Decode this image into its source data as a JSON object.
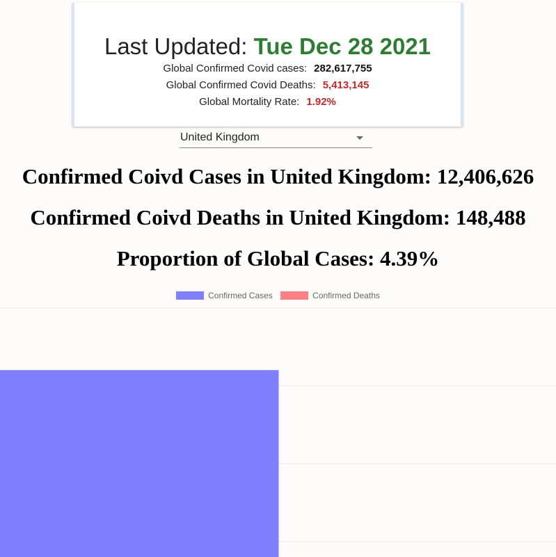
{
  "summary": {
    "last_updated_label": "Last Updated:",
    "last_updated_date": "Tue Dec 28 2021",
    "global_cases_label": "Global Confirmed Covid cases:",
    "global_cases_value": "282,617,755",
    "global_deaths_label": "Global Confirmed Covid Deaths:",
    "global_deaths_value": "5,413,145",
    "mortality_label": "Global Mortality Rate:",
    "mortality_value": "1.92%"
  },
  "country_select": {
    "selected": "United Kingdom"
  },
  "headlines": {
    "cases": "Confirmed Coivd Cases in United Kingdom: 12,406,626",
    "deaths": "Confirmed Coivd Deaths in United Kingdom: 148,488",
    "proportion": "Proportion of Global Cases: 4.39%"
  },
  "colors": {
    "cases": "#8080ff",
    "deaths": "#ff8080",
    "gridline": "#e6e6e6",
    "date_green": "#2e7d32",
    "value_red": "#c62828"
  },
  "chart_data": {
    "type": "bar",
    "categories": [
      ""
    ],
    "series": [
      {
        "name": "Confirmed Cases",
        "values": [
          12406626
        ]
      },
      {
        "name": "Confirmed Deaths",
        "values": [
          148488
        ]
      }
    ],
    "ylim": [
      0,
      14000000
    ],
    "grid": true,
    "legend": "top"
  }
}
